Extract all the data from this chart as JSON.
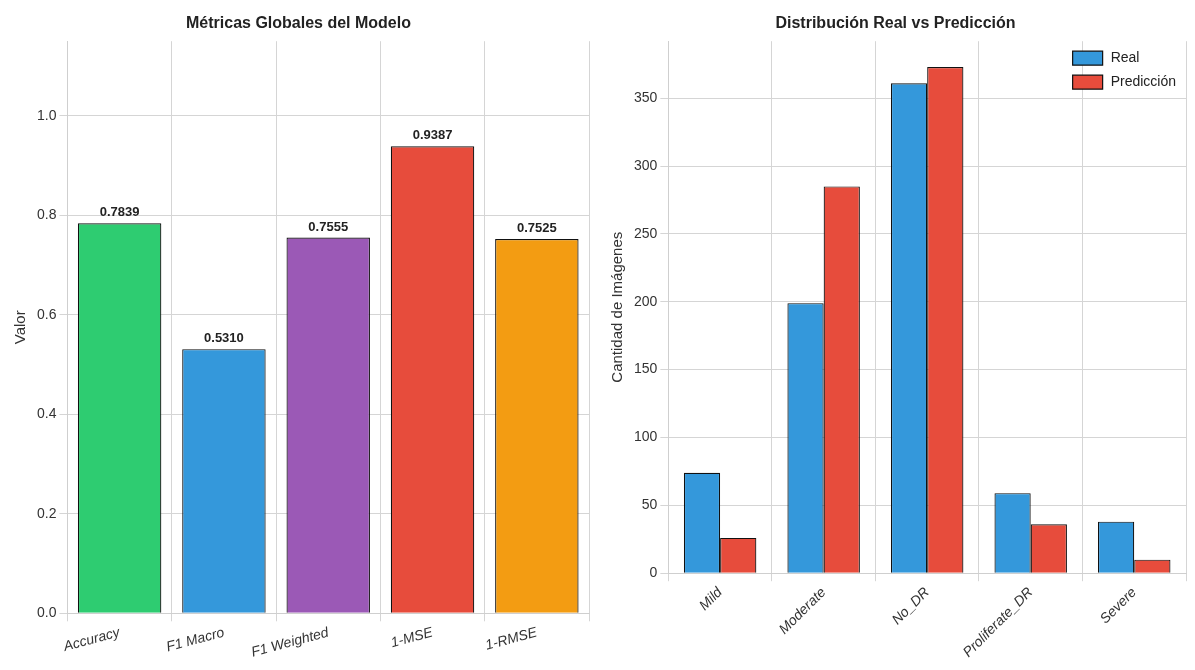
{
  "chart_data": [
    {
      "type": "bar",
      "title": "Métricas Globales del Modelo",
      "ylabel": "Valor",
      "categories": [
        "Accuracy",
        "F1 Macro",
        "F1 Weighted",
        "1-MSE",
        "1-RMSE"
      ],
      "values": [
        0.7839,
        0.531,
        0.7555,
        0.9387,
        0.7525
      ],
      "value_labels": [
        "0.7839",
        "0.5310",
        "0.7555",
        "0.9387",
        "0.7525"
      ],
      "colors": [
        "#2ecc71",
        "#3498db",
        "#9b59b6",
        "#e74c3c",
        "#f39c12"
      ],
      "ylim": [
        0,
        1.15
      ],
      "yticks": [
        {
          "value": 0,
          "label": "0.0"
        },
        0.2,
        0.4,
        0.6,
        0.8,
        {
          "value": 1,
          "label": "1.0"
        }
      ],
      "grid": true
    },
    {
      "type": "bar",
      "title": "Distribución Real vs Predicción",
      "ylabel": "Cantidad de Imágenes",
      "categories": [
        "Mild",
        "Moderate",
        "No_DR",
        "Proliferate_DR",
        "Severe"
      ],
      "series": [
        {
          "name": "Real",
          "color": "#3498db",
          "values": [
            74,
            199,
            361,
            59,
            38
          ]
        },
        {
          "name": "Predicción",
          "color": "#e74c3c",
          "values": [
            26,
            285,
            373,
            36,
            10
          ]
        }
      ],
      "ylim": [
        0,
        392
      ],
      "yticks": [
        0,
        50,
        100,
        150,
        200,
        250,
        300,
        350
      ],
      "grid": true,
      "legend": "top right"
    }
  ]
}
